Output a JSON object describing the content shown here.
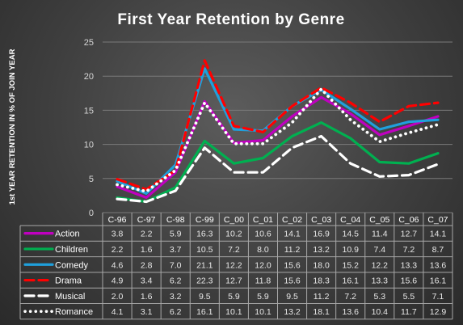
{
  "chart_data": {
    "type": "line",
    "title": "First Year Retention  by Genre",
    "xlabel": "",
    "ylabel": "1st YEAR RETENTION IN % OF JOIN YEAR",
    "ylim": [
      0,
      25
    ],
    "yticks": [
      0,
      5,
      10,
      15,
      20,
      25
    ],
    "grid": true,
    "legend": "data-table",
    "categories": [
      "C-96",
      "C-97",
      "C-98",
      "C-99",
      "C_00",
      "C_01",
      "C_02",
      "C_03",
      "C_04",
      "C_05",
      "C_06",
      "C_07"
    ],
    "series": [
      {
        "name": "Action",
        "color": "#c000c0",
        "dash": "solid",
        "values": [
          3.8,
          2.2,
          5.9,
          16.3,
          10.2,
          10.6,
          14.1,
          16.9,
          14.5,
          11.4,
          12.7,
          14.1
        ]
      },
      {
        "name": "Children",
        "color": "#00b050",
        "dash": "solid",
        "values": [
          2.2,
          1.6,
          3.7,
          10.5,
          7.2,
          8.0,
          11.2,
          13.2,
          10.9,
          7.4,
          7.2,
          8.7
        ]
      },
      {
        "name": "Comedy",
        "color": "#1fa0dc",
        "dash": "solid",
        "values": [
          4.6,
          2.8,
          7.0,
          21.1,
          12.2,
          12.0,
          15.6,
          18.0,
          15.2,
          12.2,
          13.3,
          13.6
        ]
      },
      {
        "name": "Drama",
        "color": "#ff0000",
        "dash": "dashed",
        "values": [
          4.9,
          3.4,
          6.2,
          22.3,
          12.7,
          11.8,
          15.6,
          18.3,
          16.1,
          13.3,
          15.6,
          16.1
        ]
      },
      {
        "name": "Musical",
        "color": "#ffffff",
        "dash": "dashed",
        "values": [
          2.0,
          1.6,
          3.2,
          9.5,
          5.9,
          5.9,
          9.5,
          11.2,
          7.2,
          5.3,
          5.5,
          7.1
        ]
      },
      {
        "name": "Romance",
        "color": "#ffffff",
        "dash": "dotted",
        "values": [
          4.1,
          3.1,
          6.2,
          16.1,
          10.1,
          10.1,
          13.2,
          18.1,
          13.6,
          10.4,
          11.7,
          12.9
        ]
      }
    ]
  }
}
